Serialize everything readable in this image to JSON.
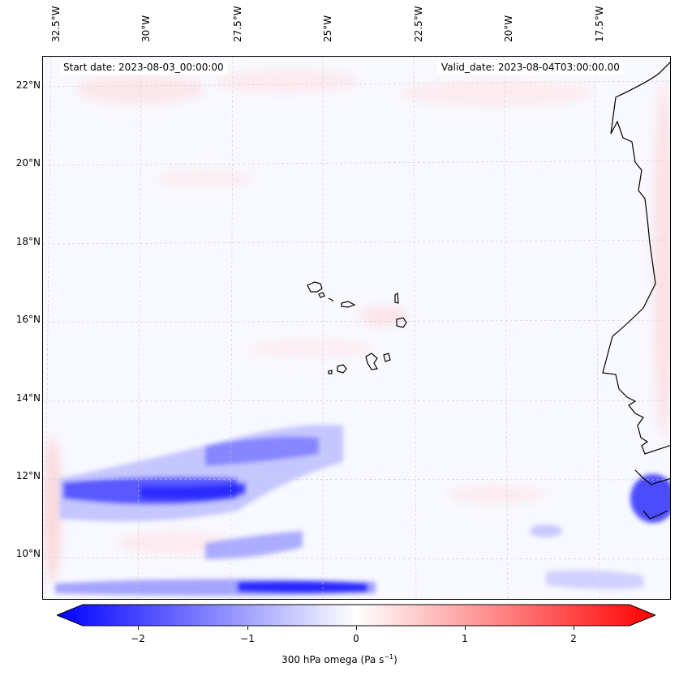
{
  "header": {
    "start_date": "Start date: 2023-08-03_00:00:00",
    "valid_date": "Valid_date: 2023-08-04T03:00:00.00"
  },
  "lon_labels": [
    "32.5°W",
    "30°W",
    "27.5°W",
    "25°W",
    "22.5°W",
    "20°W",
    "17.5°W"
  ],
  "lat_labels": [
    "22°N",
    "20°N",
    "18°N",
    "16°N",
    "14°N",
    "12°N",
    "10°N"
  ],
  "colorbar": {
    "ticks": [
      "−2",
      "−1",
      "0",
      "1",
      "2"
    ],
    "label": "300 hPa omega (Pa s",
    "label_sup": "−1",
    "label_end": ")",
    "min_color": "#0000ff",
    "mid_color": "#ffffff",
    "max_color": "#ff0000"
  },
  "colors": {
    "land_outline": "#000000",
    "grid": "#cccccc"
  }
}
